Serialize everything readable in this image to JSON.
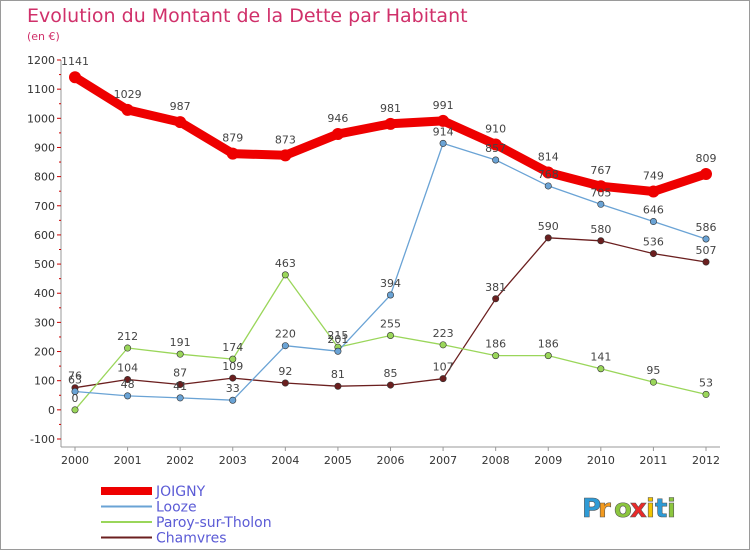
{
  "chart_data": {
    "type": "line",
    "title": "Evolution du Montant de la Dette par Habitant",
    "unit": "(en €)",
    "x": [
      "2000",
      "2001",
      "2002",
      "2003",
      "2004",
      "2005",
      "2006",
      "2007",
      "2008",
      "2009",
      "2010",
      "2011",
      "2012"
    ],
    "ylim": [
      -100,
      1200
    ],
    "yticks": [
      -100,
      0,
      100,
      200,
      300,
      400,
      500,
      600,
      700,
      800,
      900,
      1000,
      1100,
      1200
    ],
    "grid": false,
    "legend": "bottom-left",
    "series": [
      {
        "name": "Chamvres",
        "color": "#6b1f1f",
        "values": [
          76,
          104,
          87,
          109,
          92,
          81,
          85,
          107,
          381,
          590,
          580,
          536,
          507
        ]
      },
      {
        "name": "Paroy-sur-Tholon",
        "color": "#9ad65a",
        "values": [
          0,
          212,
          191,
          174,
          463,
          215,
          255,
          223,
          186,
          186,
          141,
          95,
          53
        ]
      },
      {
        "name": "Looze",
        "color": "#6aa3d5",
        "values": [
          63,
          48,
          41,
          33,
          220,
          201,
          394,
          914,
          857,
          768,
          705,
          646,
          586
        ]
      },
      {
        "name": "JOIGNY",
        "color": "#ee0000",
        "values": [
          1141,
          1029,
          987,
          879,
          873,
          946,
          981,
          991,
          910,
          814,
          767,
          749,
          809
        ]
      }
    ],
    "legend_order": [
      "JOIGNY",
      "Looze",
      "Paroy-sur-Tholon",
      "Chamvres"
    ]
  },
  "legend_text_color": "#5b5bd6",
  "logo": {
    "letters": [
      {
        "ch": "P",
        "color": "#2e9bd6"
      },
      {
        "ch": "r",
        "color": "#f39a1e"
      },
      {
        "ch": "o",
        "color": "#8cc63f"
      },
      {
        "ch": "x",
        "color": "#ea2a2a"
      },
      {
        "ch": "i",
        "color": "#f2c500"
      },
      {
        "ch": "t",
        "color": "#2e9bd6"
      },
      {
        "ch": "i",
        "color": "#8cc63f"
      }
    ]
  }
}
